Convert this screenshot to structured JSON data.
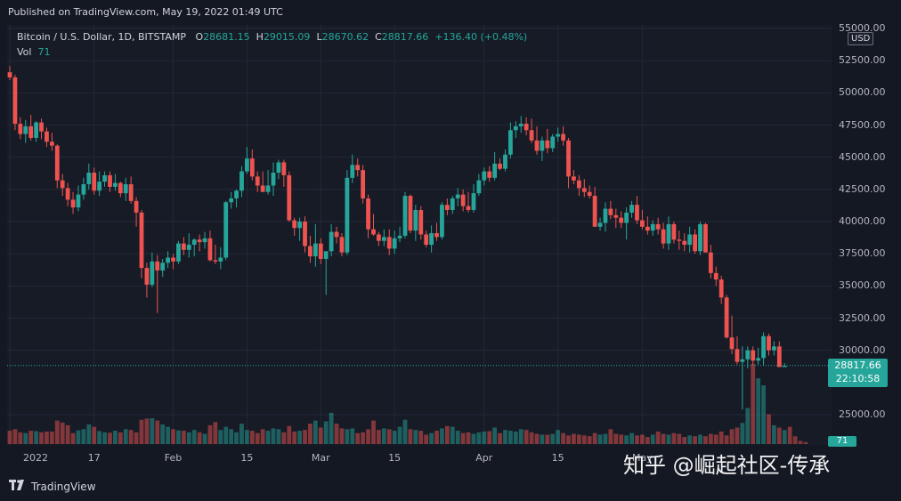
{
  "header": {
    "published": "Published on TradingView.com, May 19, 2022 01:49 UTC"
  },
  "legend": {
    "symbol": "Bitcoin / U.S. Dollar, 1D, BITSTAMP",
    "o_label": "O",
    "o_value": "28681.15",
    "h_label": "H",
    "h_value": "29015.09",
    "l_label": "L",
    "l_value": "28670.62",
    "c_label": "C",
    "c_value": "28817.66",
    "change": "+136.40 (+0.48%)",
    "vol_label": "Vol",
    "vol_value": "71"
  },
  "currency": "USD",
  "price_box": {
    "price": "28817.66",
    "countdown": "22:10:58"
  },
  "vol_box": "71",
  "footer": {
    "brand": "TradingView",
    "watermark": "知乎 @崛起社区-传承"
  },
  "colors": {
    "up": "#26a69a",
    "down": "#ef5350",
    "background": "#161b26",
    "grid": "#232838"
  },
  "chart_data": {
    "type": "candlestick",
    "y_ticks": [
      "55000.00",
      "52500.00",
      "50000.00",
      "47500.00",
      "45000.00",
      "42500.00",
      "40000.00",
      "37500.00",
      "35000.00",
      "32500.00",
      "30000.00",
      "25000.00"
    ],
    "y_tick_values": [
      55000,
      52500,
      50000,
      47500,
      45000,
      42500,
      40000,
      37500,
      35000,
      32500,
      30000,
      25000
    ],
    "ylim": [
      23400,
      55300
    ],
    "x_ticks": [
      "2022",
      "17",
      "Feb",
      "15",
      "Mar",
      "15",
      "Apr",
      "15",
      "May"
    ],
    "x_tick_days": [
      0,
      16,
      31,
      45,
      59,
      73,
      90,
      104,
      120
    ],
    "last_price": 28817.66,
    "candles": [
      [
        51600,
        52100,
        51000,
        51200
      ],
      [
        51200,
        51400,
        47100,
        47600
      ],
      [
        47600,
        48100,
        46400,
        46800
      ],
      [
        46800,
        47900,
        46100,
        47400
      ],
      [
        47400,
        48300,
        46300,
        46500
      ],
      [
        46500,
        47800,
        46200,
        47700
      ],
      [
        47700,
        48000,
        46400,
        47000
      ],
      [
        47000,
        47300,
        45800,
        46200
      ],
      [
        46200,
        46900,
        45500,
        45900
      ],
      [
        45900,
        46000,
        42600,
        43200
      ],
      [
        43200,
        43700,
        42000,
        42600
      ],
      [
        42600,
        43000,
        41200,
        41700
      ],
      [
        41700,
        42300,
        40600,
        41100
      ],
      [
        41100,
        42800,
        40800,
        42100
      ],
      [
        42100,
        43400,
        41700,
        42900
      ],
      [
        42900,
        44500,
        42500,
        43800
      ],
      [
        43800,
        44200,
        42100,
        42400
      ],
      [
        42400,
        43900,
        42000,
        43100
      ],
      [
        43100,
        43900,
        42700,
        43600
      ],
      [
        43600,
        43900,
        42300,
        42700
      ],
      [
        42700,
        43700,
        42400,
        43000
      ],
      [
        43000,
        43100,
        41900,
        42200
      ],
      [
        42200,
        43400,
        41600,
        42900
      ],
      [
        42900,
        43500,
        41400,
        41600
      ],
      [
        41600,
        41900,
        39600,
        40700
      ],
      [
        40700,
        40900,
        35600,
        36400
      ],
      [
        36400,
        36800,
        34100,
        35100
      ],
      [
        35100,
        37600,
        34900,
        36900
      ],
      [
        36900,
        37400,
        32900,
        36200
      ],
      [
        36200,
        37100,
        35700,
        36800
      ],
      [
        36800,
        37700,
        36400,
        37200
      ],
      [
        37200,
        37500,
        36300,
        36900
      ],
      [
        36900,
        38500,
        36700,
        38300
      ],
      [
        38300,
        38800,
        37400,
        37800
      ],
      [
        37800,
        39100,
        37200,
        38200
      ],
      [
        38200,
        38700,
        37300,
        38600
      ],
      [
        38600,
        39000,
        37700,
        38400
      ],
      [
        38400,
        39200,
        37900,
        38700
      ],
      [
        38700,
        39300,
        36900,
        37000
      ],
      [
        37000,
        38200,
        36700,
        36900
      ],
      [
        36900,
        38000,
        36300,
        37200
      ],
      [
        37200,
        41600,
        37000,
        41500
      ],
      [
        41500,
        42300,
        41000,
        41800
      ],
      [
        41800,
        42500,
        41100,
        42400
      ],
      [
        42400,
        44300,
        41900,
        43900
      ],
      [
        43900,
        45800,
        43700,
        44900
      ],
      [
        44900,
        45600,
        43200,
        43500
      ],
      [
        43500,
        43900,
        42300,
        42800
      ],
      [
        42800,
        43900,
        42300,
        42300
      ],
      [
        42300,
        44000,
        42100,
        42800
      ],
      [
        42800,
        44600,
        42000,
        43800
      ],
      [
        43800,
        44800,
        43300,
        44600
      ],
      [
        44600,
        44800,
        42700,
        43600
      ],
      [
        43600,
        43900,
        40000,
        40100
      ],
      [
        40100,
        40300,
        38900,
        39500
      ],
      [
        39500,
        40300,
        38500,
        40000
      ],
      [
        40000,
        40400,
        37600,
        38100
      ],
      [
        38100,
        38900,
        36800,
        37300
      ],
      [
        37300,
        39800,
        36500,
        38300
      ],
      [
        38300,
        38700,
        36700,
        37100
      ],
      [
        37100,
        37500,
        34300,
        37700
      ],
      [
        37700,
        39800,
        37300,
        39200
      ],
      [
        39200,
        39600,
        38300,
        38800
      ],
      [
        38800,
        39100,
        37300,
        37600
      ],
      [
        37600,
        44000,
        37400,
        43400
      ],
      [
        43400,
        45200,
        43000,
        44400
      ],
      [
        44400,
        44900,
        43500,
        44000
      ],
      [
        44000,
        44400,
        41400,
        41800
      ],
      [
        41800,
        42100,
        38700,
        39400
      ],
      [
        39400,
        40600,
        38900,
        39000
      ],
      [
        39000,
        39200,
        38100,
        38500
      ],
      [
        38500,
        39400,
        38100,
        38800
      ],
      [
        38800,
        39400,
        37400,
        37900
      ],
      [
        37900,
        39300,
        37500,
        38700
      ],
      [
        38700,
        39600,
        38400,
        38900
      ],
      [
        38900,
        42300,
        38700,
        42000
      ],
      [
        42000,
        42100,
        39100,
        39300
      ],
      [
        39300,
        41300,
        38500,
        40900
      ],
      [
        40900,
        41200,
        38600,
        39000
      ],
      [
        39000,
        39300,
        38000,
        38200
      ],
      [
        38200,
        39700,
        37600,
        39100
      ],
      [
        39100,
        39900,
        38500,
        38800
      ],
      [
        38800,
        41500,
        38600,
        41300
      ],
      [
        41300,
        41800,
        40500,
        40900
      ],
      [
        40900,
        42000,
        40600,
        41800
      ],
      [
        41800,
        42600,
        41200,
        42100
      ],
      [
        42100,
        42500,
        40800,
        41200
      ],
      [
        41200,
        42300,
        40700,
        40900
      ],
      [
        40900,
        42900,
        40700,
        42200
      ],
      [
        42200,
        43700,
        42000,
        43200
      ],
      [
        43200,
        44200,
        42800,
        43900
      ],
      [
        43900,
        44300,
        43100,
        43400
      ],
      [
        43400,
        45400,
        43200,
        44500
      ],
      [
        44500,
        44900,
        44000,
        44100
      ],
      [
        44100,
        45600,
        43900,
        45200
      ],
      [
        45200,
        47700,
        44900,
        47100
      ],
      [
        47100,
        47800,
        46500,
        47400
      ],
      [
        47400,
        48200,
        46900,
        47600
      ],
      [
        47600,
        48100,
        46700,
        47100
      ],
      [
        47100,
        48000,
        46100,
        46300
      ],
      [
        46300,
        47400,
        45200,
        45500
      ],
      [
        45500,
        46600,
        44700,
        46300
      ],
      [
        46300,
        47200,
        45300,
        45700
      ],
      [
        45700,
        46800,
        45400,
        46600
      ],
      [
        46600,
        47300,
        46200,
        46800
      ],
      [
        46800,
        47400,
        45900,
        46300
      ],
      [
        46300,
        46500,
        42600,
        43500
      ],
      [
        43500,
        44000,
        42900,
        43200
      ],
      [
        43200,
        43600,
        42000,
        42600
      ],
      [
        42600,
        43300,
        41900,
        42300
      ],
      [
        42300,
        42800,
        41800,
        42000
      ],
      [
        42000,
        42700,
        39600,
        39600
      ],
      [
        39600,
        40300,
        39300,
        39900
      ],
      [
        39900,
        41500,
        39200,
        41000
      ],
      [
        41000,
        41600,
        40200,
        40500
      ],
      [
        40500,
        41000,
        39500,
        40300
      ],
      [
        40300,
        40800,
        39500,
        39900
      ],
      [
        39900,
        41100,
        38600,
        40700
      ],
      [
        40700,
        41600,
        40300,
        41300
      ],
      [
        41300,
        42000,
        39800,
        40100
      ],
      [
        40100,
        40900,
        39400,
        39600
      ],
      [
        39600,
        40400,
        39000,
        39300
      ],
      [
        39300,
        40100,
        38900,
        39800
      ],
      [
        39800,
        40300,
        39000,
        39400
      ],
      [
        39400,
        39900,
        37900,
        38300
      ],
      [
        38300,
        40400,
        37800,
        39800
      ],
      [
        39800,
        40000,
        38300,
        38600
      ],
      [
        38600,
        39300,
        37800,
        38500
      ],
      [
        38500,
        39100,
        37700,
        38200
      ],
      [
        38200,
        39600,
        37600,
        39000
      ],
      [
        39000,
        39400,
        37500,
        37700
      ],
      [
        37700,
        40000,
        37400,
        39800
      ],
      [
        39800,
        39900,
        37600,
        37600
      ],
      [
        37600,
        38200,
        35600,
        36000
      ],
      [
        36000,
        36500,
        35000,
        35500
      ],
      [
        35500,
        35800,
        33600,
        34100
      ],
      [
        34100,
        34300,
        30900,
        31000
      ],
      [
        31000,
        32700,
        29700,
        30100
      ],
      [
        30100,
        31100,
        28900,
        29100
      ],
      [
        29100,
        30300,
        25400,
        29300
      ],
      [
        29300,
        30300,
        28600,
        30000
      ],
      [
        30000,
        30300,
        28900,
        29200
      ],
      [
        29200,
        30200,
        28900,
        29400
      ],
      [
        29400,
        31400,
        28800,
        31100
      ],
      [
        31100,
        31300,
        29600,
        30000
      ],
      [
        30000,
        30700,
        29600,
        30300
      ],
      [
        30300,
        30700,
        28700,
        28700
      ],
      [
        28700,
        29000,
        28700,
        28800
      ]
    ],
    "volumes": [
      34,
      38,
      30,
      28,
      34,
      33,
      30,
      32,
      32,
      60,
      55,
      48,
      28,
      35,
      38,
      50,
      44,
      33,
      30,
      29,
      34,
      30,
      38,
      36,
      30,
      62,
      65,
      66,
      60,
      50,
      44,
      38,
      35,
      34,
      30,
      36,
      30,
      26,
      48,
      56,
      36,
      44,
      38,
      30,
      52,
      36,
      34,
      28,
      38,
      34,
      40,
      38,
      30,
      46,
      32,
      34,
      36,
      52,
      60,
      42,
      58,
      80,
      52,
      40,
      38,
      40,
      28,
      30,
      38,
      60,
      36,
      40,
      38,
      34,
      44,
      62,
      38,
      36,
      34,
      24,
      28,
      34,
      40,
      46,
      44,
      34,
      28,
      30,
      26,
      30,
      32,
      33,
      42,
      28,
      36,
      34,
      32,
      38,
      36,
      30,
      26,
      24,
      24,
      26,
      36,
      28,
      22,
      26,
      24,
      22,
      20,
      28,
      24,
      26,
      38,
      26,
      24,
      22,
      28,
      22,
      24,
      18,
      24,
      32,
      26,
      24,
      28,
      26,
      18,
      22,
      20,
      24,
      20,
      26,
      24,
      32,
      22,
      38,
      42,
      54,
      92,
      205,
      168,
      150,
      76,
      48,
      42,
      36,
      44,
      20,
      8,
      5
    ]
  }
}
